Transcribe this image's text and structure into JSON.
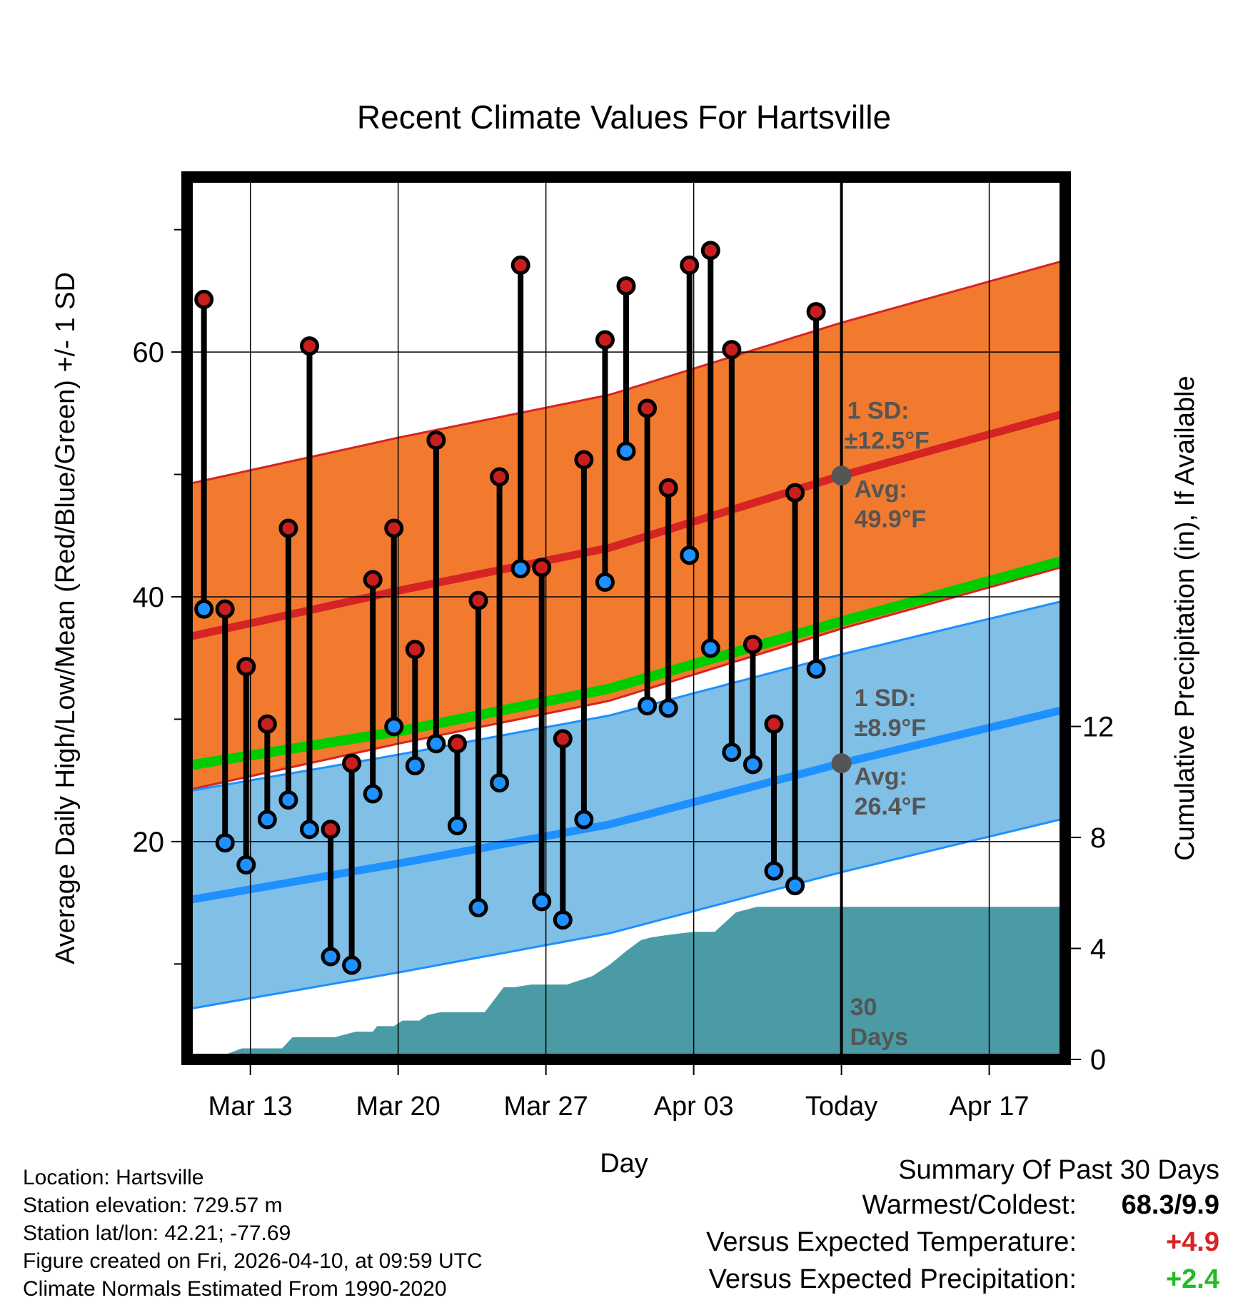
{
  "chart_data": {
    "type": "line",
    "title": "Recent Climate Values For Hartsville",
    "xlabel": "Day",
    "ylabel_left": "Average Daily High/Low/Mean (Red/Blue/Green) +/- 1 SD",
    "ylabel_right": "Cumulative Precipitation (in), If Available",
    "x_tick_labels": [
      "Mar 13",
      "Mar 20",
      "Mar 27",
      "Apr 03",
      "Today",
      "Apr 17"
    ],
    "x_tick_days": [
      3,
      10,
      17,
      24,
      31,
      38
    ],
    "xlim_days": [
      0,
      41.6
    ],
    "ylim_left": [
      2.2,
      74.3
    ],
    "left_ticks": [
      20,
      40,
      60
    ],
    "left_minor_ticks": [
      10,
      30,
      50,
      70
    ],
    "ylim_right": [
      0,
      31.8
    ],
    "right_ticks": [
      0,
      4,
      8,
      12
    ],
    "today_day": 31,
    "days_label": "30\nDays",
    "daily_high": [
      64.3,
      39.0,
      34.3,
      29.6,
      45.6,
      60.5,
      21.0,
      26.4,
      41.4,
      45.6,
      35.7,
      52.8,
      28.0,
      39.7,
      49.8,
      67.1,
      42.4,
      28.4,
      51.2,
      61.0,
      65.4,
      55.4,
      48.9,
      67.1,
      68.3,
      60.2,
      36.1,
      29.6,
      48.5,
      63.3
    ],
    "daily_low": [
      39.0,
      19.9,
      18.1,
      21.8,
      23.4,
      21.0,
      10.6,
      9.9,
      23.9,
      29.4,
      26.2,
      28.0,
      21.3,
      14.6,
      24.8,
      42.3,
      15.1,
      13.6,
      21.8,
      41.2,
      51.9,
      31.1,
      30.9,
      43.4,
      35.8,
      27.3,
      26.3,
      17.6,
      16.4,
      34.1
    ],
    "normal_high": {
      "days": [
        0,
        10,
        20,
        31,
        41.6
      ],
      "values": [
        36.7,
        40.5,
        44.0,
        49.9,
        55.0
      ]
    },
    "normal_high_sd": 12.5,
    "normal_low": {
      "days": [
        0,
        10,
        20,
        31,
        41.6
      ],
      "values": [
        15.2,
        18.2,
        21.4,
        26.4,
        30.8
      ]
    },
    "normal_low_sd": 8.9,
    "normal_mean": {
      "days": [
        0,
        10,
        20,
        31,
        41.6
      ],
      "values": [
        26.2,
        29.0,
        32.5,
        38.0,
        43.0
      ]
    },
    "cumulative_precip": {
      "days": [
        0.5,
        1,
        1.9,
        2.6,
        3,
        4.5,
        5,
        5.9,
        7,
        8,
        8.8,
        9,
        9.8,
        10.2,
        11,
        11.4,
        12,
        13.5,
        14.1,
        15,
        15.5,
        16.3,
        17,
        18,
        19.2,
        20,
        20.8,
        21.5,
        22,
        22.9,
        24,
        25,
        26,
        27,
        28,
        29,
        30,
        31,
        41.6
      ],
      "values": [
        0.0,
        0.2,
        0.2,
        0.4,
        0.4,
        0.4,
        0.8,
        0.8,
        0.8,
        1.0,
        1.0,
        1.2,
        1.2,
        1.4,
        1.4,
        1.6,
        1.7,
        1.7,
        1.7,
        2.6,
        2.6,
        2.7,
        2.7,
        2.7,
        3.0,
        3.4,
        3.9,
        4.3,
        4.4,
        4.5,
        4.6,
        4.6,
        5.3,
        5.5,
        5.5,
        5.5,
        5.5,
        5.5,
        5.5
      ]
    },
    "annotations": {
      "high_sd_label": "1 SD:",
      "high_sd_value": "±12.5°F",
      "high_avg_label": "Avg:",
      "high_avg_value": "49.9°F",
      "low_sd_label": "1 SD:",
      "low_sd_value": "±8.9°F",
      "low_avg_label": "Avg:",
      "low_avg_value": "26.4°F"
    },
    "colors": {
      "high_band": "#f27a2e",
      "high_line": "#d62424",
      "low_band": "#80bfe6",
      "low_line": "#1e90ff",
      "mean_line": "#00cc00",
      "precip": "#4a9ba6",
      "high_dot": "#c81e1e",
      "low_dot": "#1e90ff",
      "annotation": "#555555"
    }
  },
  "footer": {
    "location": "Location: Hartsville",
    "elevation": "Station elevation: 729.57 m",
    "latlon": "Station lat/lon: 42.21; -77.69",
    "created": "Figure created on Fri, 2026-04-10, at 09:59 UTC",
    "normals": "Climate Normals Estimated From 1990-2020"
  },
  "summary": {
    "title": "Summary Of Past 30 Days",
    "warmest_label": "Warmest/Coldest:",
    "warmest_value": "68.3/9.9",
    "temp_label": "Versus Expected Temperature:",
    "temp_value": "+4.9",
    "temp_color": "#d62424",
    "precip_label": "Versus Expected Precipitation:",
    "precip_value": "+2.4",
    "precip_color": "#22bb22"
  }
}
